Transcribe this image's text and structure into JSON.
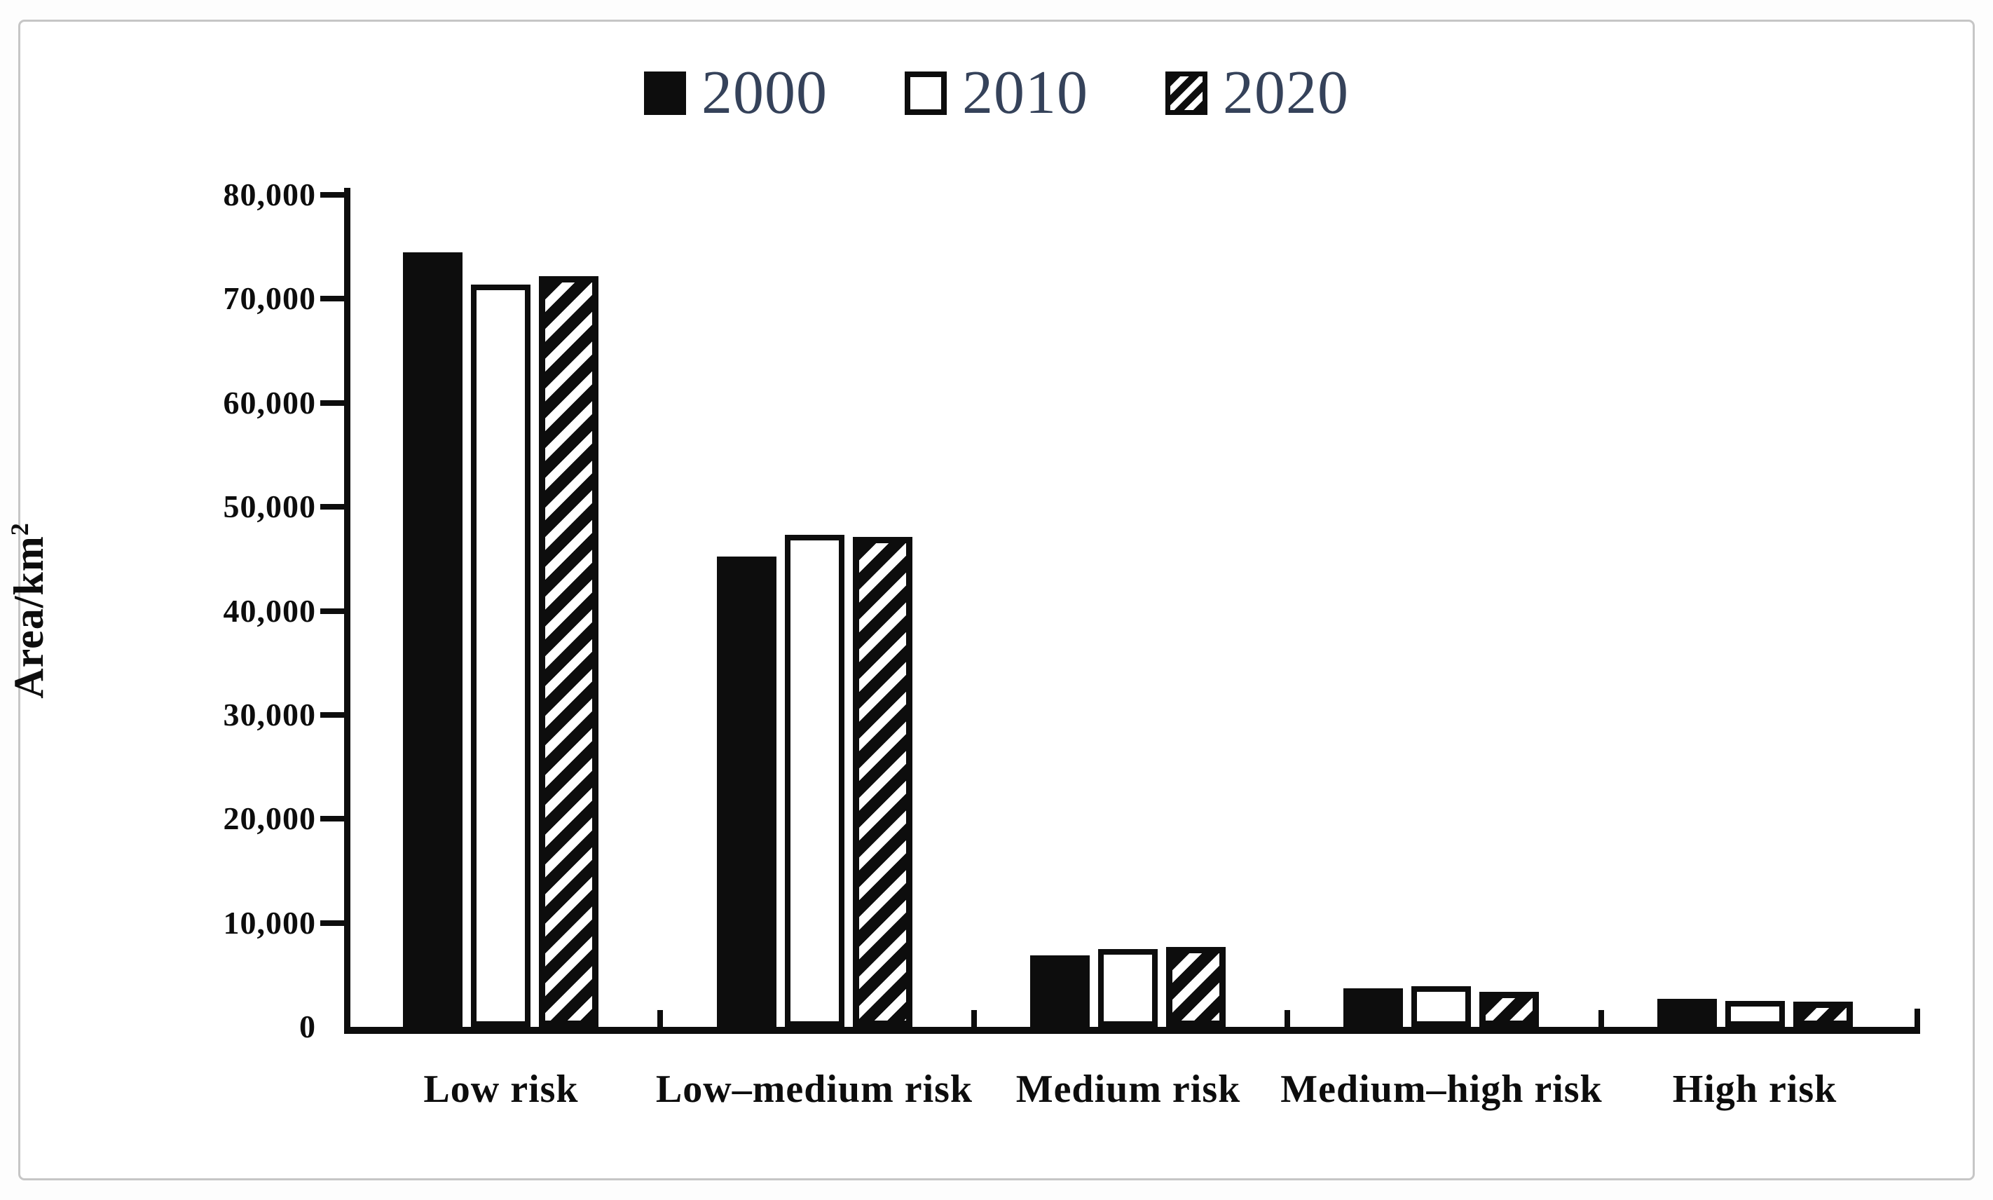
{
  "figure": {
    "background_color": "#ffffff",
    "frame_border_color": "#c6c6c6",
    "ink_color": "#0d0d0d",
    "legend_text_color": "#35425a"
  },
  "legend": {
    "items": [
      {
        "label": "2000",
        "style": "solid-black",
        "swatch_icon": "solid-black-square"
      },
      {
        "label": "2010",
        "style": "open-white",
        "swatch_icon": "open-white-square"
      },
      {
        "label": "2020",
        "style": "hatched",
        "swatch_icon": "diagonal-hatched-square"
      }
    ]
  },
  "y_axis": {
    "title_main": "Area/km",
    "title_superscript": "2",
    "tick_labels_top_to_bottom": [
      "80,000",
      "70,000",
      "60,000",
      "50,000",
      "40,000",
      "30,000",
      "20,000",
      "10,000",
      "0"
    ]
  },
  "chart_data": {
    "type": "bar",
    "title": "",
    "xlabel": "",
    "ylabel": "Area/km2",
    "ylim": [
      0,
      80000
    ],
    "tick_step": 10000,
    "grid": false,
    "legend_position": "top-center",
    "categories": [
      "Low risk",
      "Low–medium risk",
      "Medium risk",
      "Medium–high risk",
      "High risk"
    ],
    "series": [
      {
        "name": "2000",
        "style": "solid-black",
        "values": [
          74500,
          45200,
          6900,
          3700,
          2700
        ]
      },
      {
        "name": "2010",
        "style": "open-white",
        "values": [
          71400,
          47300,
          7500,
          3900,
          2500
        ]
      },
      {
        "name": "2020",
        "style": "hatched",
        "values": [
          72200,
          47100,
          7700,
          3400,
          2400
        ]
      }
    ]
  }
}
